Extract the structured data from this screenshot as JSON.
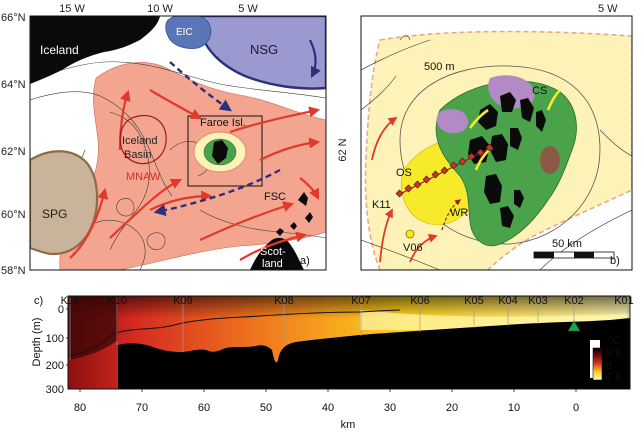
{
  "panel_a": {
    "lon_ticks": [
      "15 W",
      "10 W",
      "5 W"
    ],
    "lat_ticks": [
      "66°N",
      "64°N",
      "62°N",
      "60°N",
      "58°N"
    ],
    "regions": {
      "iceland": "Iceland",
      "eic": "EIC",
      "nsg": "NSG",
      "iceland_basin_line1": "Iceland",
      "iceland_basin_line2": "Basin",
      "spg": "SPG",
      "mnaw": "MNAW",
      "faroe": "Faroe Isl.",
      "fsc": "FSC",
      "scotland_line1": "Scot-",
      "scotland_line2": "land"
    },
    "panel_label": "a)",
    "colors": {
      "mnaw": "#f3a58f",
      "spg": "#c9b39a",
      "nsg": "#9b9ad0",
      "eic": "#5a76b8",
      "current": "#e03a2d",
      "deep_flow": "#2e2f7a"
    }
  },
  "panel_b": {
    "lon_tick": "5 W",
    "lat_tick": "62 N",
    "labels": {
      "contour": "500 m",
      "cs": "CS",
      "os": "OS",
      "wr": "WR",
      "k11": "K11",
      "v06": "V06",
      "scale": "50 km"
    },
    "panel_label": "b)",
    "colors": {
      "shelf_band": "#fdf3b8",
      "shelf_core": "#f6ea2a",
      "green": "#4aa34a",
      "purple": "#b48ac6",
      "brown": "#8a5a46"
    }
  },
  "panel_c": {
    "panel_label": "c)",
    "stations": [
      "K11",
      "K10",
      "K09",
      "K08",
      "K07",
      "K06",
      "K05",
      "K04",
      "K03",
      "K02",
      "K01"
    ],
    "y_label": "Depth (m)",
    "y_ticks": [
      "0",
      "100",
      "200",
      "300"
    ],
    "x_label": "km",
    "x_ticks": [
      "80",
      "70",
      "60",
      "50",
      "40",
      "30",
      "20",
      "10",
      "0"
    ],
    "colorbar": {
      "unit": "°C",
      "ticks": [
        "8.5",
        "8",
        "7.5"
      ],
      "colors": [
        "#000000",
        "#7a0a0a",
        "#e03a2a",
        "#ffd21c",
        "#fff9c4"
      ]
    }
  }
}
